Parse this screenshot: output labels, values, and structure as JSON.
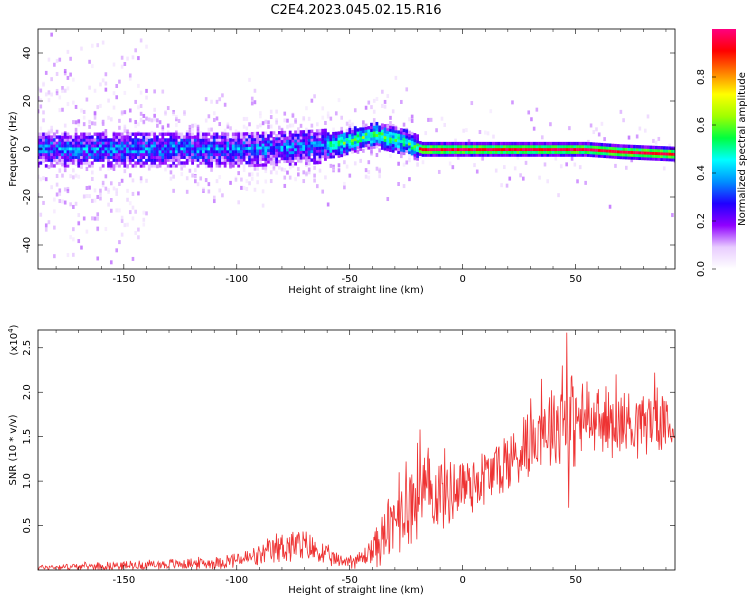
{
  "title": "C2E4.2023.045.02.15.R16",
  "chart_data": [
    {
      "type": "heatmap",
      "name": "spectrogram",
      "xlabel": "Height of straight line (km)",
      "ylabel": "Frequency (Hz)",
      "xlim": [
        -188,
        94
      ],
      "ylim": [
        -50,
        50
      ],
      "xticks": [
        -150,
        -100,
        -50,
        0,
        50
      ],
      "yticks": [
        -40,
        -20,
        0,
        20,
        40
      ],
      "ridge": [
        {
          "x": -188,
          "y": 0
        },
        {
          "x": -100,
          "y": 0
        },
        {
          "x": -70,
          "y": 1
        },
        {
          "x": -55,
          "y": 2
        },
        {
          "x": -45,
          "y": 5
        },
        {
          "x": -38,
          "y": 6
        },
        {
          "x": -30,
          "y": 4
        },
        {
          "x": -25,
          "y": 3
        },
        {
          "x": -18,
          "y": 0
        },
        {
          "x": 55,
          "y": 0
        },
        {
          "x": 70,
          "y": -1
        },
        {
          "x": 94,
          "y": -2
        }
      ],
      "colorbar": {
        "label": "Normalized spectral amplitude",
        "range": [
          0.0,
          1.0
        ],
        "ticks": [
          "0.0",
          "0.2",
          "0.4",
          "0.6",
          "0.8"
        ],
        "colors": [
          "#ffffff",
          "#e8ccff",
          "#9000ff",
          "#2000ff",
          "#0090ff",
          "#00ffff",
          "#00ff40",
          "#a0ff00",
          "#ffff00",
          "#ff8000",
          "#ff0000",
          "#ff0080"
        ]
      }
    },
    {
      "type": "line",
      "name": "snr",
      "xlabel": "Height of straight line (km)",
      "ylabel": "SNR (10 * v/v)",
      "yscale_label": "(x10",
      "yscale_exp": "4",
      "yscale_close": ")",
      "xlim": [
        -188,
        94
      ],
      "ylim": [
        0,
        2.7
      ],
      "xticks": [
        -150,
        -100,
        -50,
        0,
        50
      ],
      "yticks": [
        "0.5",
        "1.0",
        "1.5",
        "2.0",
        "2.5"
      ],
      "ytick_values": [
        0.5,
        1.0,
        1.5,
        2.0,
        2.5
      ],
      "color": "#ee3333",
      "envelope": [
        {
          "x": -188,
          "mean": 0.03,
          "amp": 0.03
        },
        {
          "x": -150,
          "mean": 0.05,
          "amp": 0.05
        },
        {
          "x": -110,
          "mean": 0.08,
          "amp": 0.07
        },
        {
          "x": -90,
          "mean": 0.15,
          "amp": 0.12
        },
        {
          "x": -78,
          "mean": 0.28,
          "amp": 0.22
        },
        {
          "x": -68,
          "mean": 0.25,
          "amp": 0.18
        },
        {
          "x": -55,
          "mean": 0.1,
          "amp": 0.08
        },
        {
          "x": -45,
          "mean": 0.12,
          "amp": 0.1
        },
        {
          "x": -35,
          "mean": 0.35,
          "amp": 0.3
        },
        {
          "x": -28,
          "mean": 0.6,
          "amp": 0.45
        },
        {
          "x": -20,
          "mean": 0.85,
          "amp": 0.55
        },
        {
          "x": -5,
          "mean": 0.9,
          "amp": 0.4
        },
        {
          "x": 10,
          "mean": 1.05,
          "amp": 0.35
        },
        {
          "x": 25,
          "mean": 1.3,
          "amp": 0.4
        },
        {
          "x": 35,
          "mean": 1.6,
          "amp": 0.4
        },
        {
          "x": 45,
          "mean": 1.7,
          "amp": 0.6
        },
        {
          "x": 55,
          "mean": 1.65,
          "amp": 0.4
        },
        {
          "x": 70,
          "mean": 1.65,
          "amp": 0.4
        },
        {
          "x": 85,
          "mean": 1.7,
          "amp": 0.35
        },
        {
          "x": 94,
          "mean": 1.55,
          "amp": 0.2
        }
      ],
      "peaks": [
        {
          "x": -33,
          "y": 0.8
        },
        {
          "x": -28,
          "y": 1.1
        },
        {
          "x": -25,
          "y": 1.22
        },
        {
          "x": -20,
          "y": 1.43
        },
        {
          "x": -19,
          "y": 1.58
        },
        {
          "x": 0,
          "y": 1.2
        },
        {
          "x": 27,
          "y": 1.72
        },
        {
          "x": 30,
          "y": 1.93
        },
        {
          "x": 35,
          "y": 2.15
        },
        {
          "x": 44,
          "y": 2.3
        },
        {
          "x": 46,
          "y": 2.67
        },
        {
          "x": 47,
          "y": 0.7
        },
        {
          "x": 55,
          "y": 2.12
        },
        {
          "x": 68,
          "y": 2.2
        },
        {
          "x": 85,
          "y": 2.22
        },
        {
          "x": 90,
          "y": 1.9
        }
      ]
    }
  ]
}
